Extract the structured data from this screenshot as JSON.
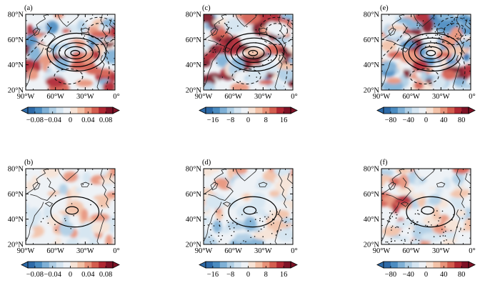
{
  "figure": {
    "panels": [
      {
        "id": "a",
        "label": "(a)",
        "cbar": "c1",
        "rings": 4,
        "dashed": true,
        "dots": 10,
        "theme": "a"
      },
      {
        "id": "b",
        "label": "(b)",
        "cbar": "c1",
        "rings": 2,
        "dashed": false,
        "dots": 16,
        "theme": "b"
      },
      {
        "id": "c",
        "label": "(c)",
        "cbar": "c2",
        "rings": 4,
        "dashed": true,
        "dots": 40,
        "theme": "c"
      },
      {
        "id": "d",
        "label": "(d)",
        "cbar": "c2",
        "rings": 2,
        "dashed": false,
        "dots": 70,
        "theme": "d"
      },
      {
        "id": "e",
        "label": "(e)",
        "cbar": "c3",
        "rings": 4,
        "dashed": true,
        "dots": 48,
        "theme": "e"
      },
      {
        "id": "f",
        "label": "(f)",
        "cbar": "c3",
        "rings": 2,
        "dashed": false,
        "dots": 90,
        "theme": "f"
      }
    ],
    "lat_labels": [
      "80°N",
      "60°N",
      "40°N",
      "20°N"
    ],
    "lon_labels": [
      "90°W",
      "60°W",
      "30°W",
      "0°"
    ],
    "colorbars": {
      "c1": [
        "−0.08",
        "−0.04",
        "0",
        "0.04",
        "0.08"
      ],
      "c2": [
        "−16",
        "−8",
        "0",
        "8",
        "16"
      ],
      "c3": [
        "−80",
        "−40",
        "0",
        "40",
        "80"
      ]
    },
    "colormap": [
      "#2d6aa8",
      "#4b8cc1",
      "#7fb0d6",
      "#b0cfe5",
      "#d5e5f1",
      "#eef2f6",
      "#f7e3d6",
      "#f3c2a8",
      "#e8937a",
      "#d45d4f",
      "#b02732",
      "#7e1226"
    ]
  }
}
